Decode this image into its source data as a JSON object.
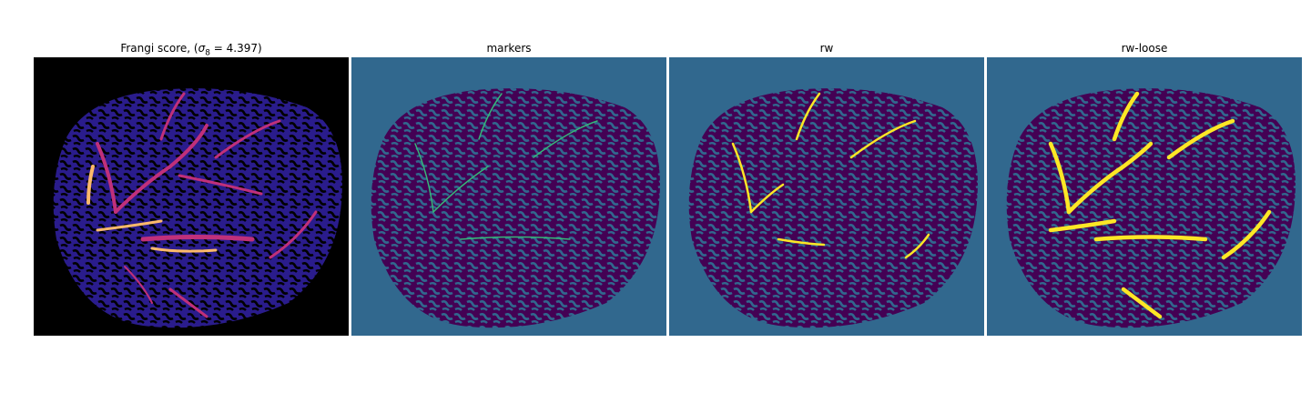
{
  "figure": {
    "panels": [
      {
        "id": "frangi",
        "title_prefix": "Frangi score, (",
        "title_sigma": "σ",
        "title_subscript": "8",
        "title_suffix": " = 4.397)",
        "colormap": "magma",
        "background": "#000000"
      },
      {
        "id": "markers",
        "title": "markers",
        "colormap": "viridis",
        "background": "#31688e"
      },
      {
        "id": "rw",
        "title": "rw",
        "colormap": "viridis",
        "background": "#31688e"
      },
      {
        "id": "rw-loose",
        "title": "rw-loose",
        "colormap": "viridis",
        "background": "#31688e"
      }
    ],
    "colors": {
      "frangi_background": "#000000",
      "frangi_texture_blue": "#2a1c8c",
      "frangi_vessel_magenta": "#c0307a",
      "frangi_vessel_hot": "#fcb96a",
      "viridis_background": "#31688e",
      "viridis_dark": "#440154",
      "viridis_teal": "#35b779",
      "viridis_yellow": "#fde725"
    }
  }
}
